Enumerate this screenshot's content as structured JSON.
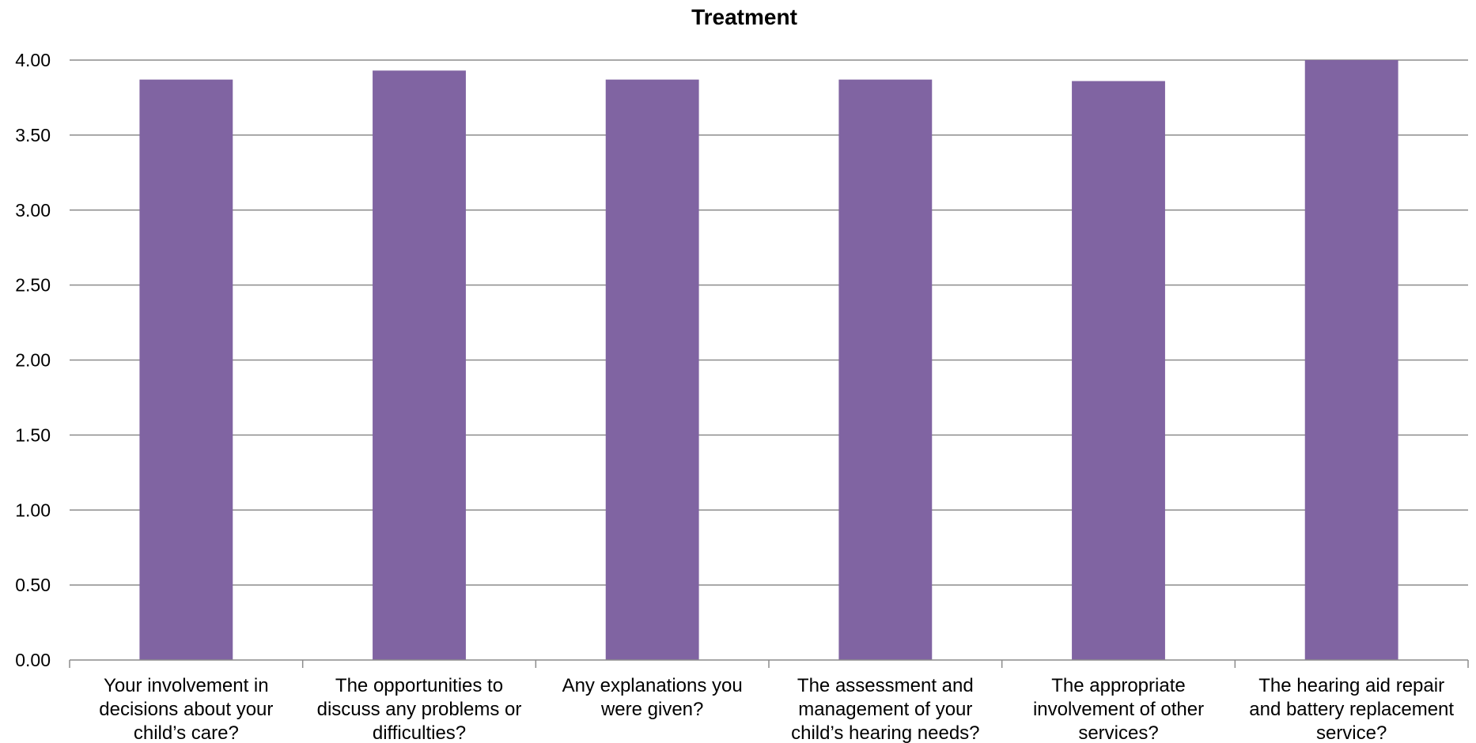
{
  "chart_data": {
    "type": "bar",
    "title": "Treatment",
    "xlabel": "",
    "ylabel": "",
    "ylim": [
      0,
      4
    ],
    "yticks": [
      "0.00",
      "0.50",
      "1.00",
      "1.50",
      "2.00",
      "2.50",
      "3.00",
      "3.50",
      "4.00"
    ],
    "grid": true,
    "legend": "none",
    "bar_color": "#8064a2",
    "categories": [
      [
        "Your involvement in",
        "decisions about your",
        "child’s care?"
      ],
      [
        "The opportunities to",
        "discuss any problems or",
        "difficulties?"
      ],
      [
        "Any explanations you",
        "were given?"
      ],
      [
        "The assessment and",
        "management of your",
        "child’s hearing needs?"
      ],
      [
        "The appropriate",
        "involvement of other",
        "services?"
      ],
      [
        "The hearing aid repair",
        "and battery replacement",
        "service?"
      ]
    ],
    "values": [
      3.87,
      3.93,
      3.87,
      3.87,
      3.86,
      4.0
    ]
  }
}
